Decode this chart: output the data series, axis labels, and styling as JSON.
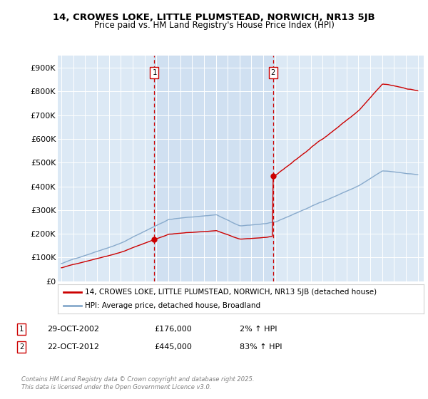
{
  "title1": "14, CROWES LOKE, LITTLE PLUMSTEAD, NORWICH, NR13 5JB",
  "title2": "Price paid vs. HM Land Registry's House Price Index (HPI)",
  "ylabel_ticks": [
    "£0",
    "£100K",
    "£200K",
    "£300K",
    "£400K",
    "£500K",
    "£600K",
    "£700K",
    "£800K",
    "£900K"
  ],
  "ytick_values": [
    0,
    100000,
    200000,
    300000,
    400000,
    500000,
    600000,
    700000,
    800000,
    900000
  ],
  "ylim": [
    0,
    950000
  ],
  "xlim_start": 1994.7,
  "xlim_end": 2025.5,
  "background_color": "#dce9f5",
  "plot_bg": "#dce9f5",
  "line1_color": "#cc0000",
  "line2_color": "#88aacc",
  "sale1_x": 2002.83,
  "sale1_y": 176000,
  "sale2_x": 2012.81,
  "sale2_y": 445000,
  "legend_line1": "14, CROWES LOKE, LITTLE PLUMSTEAD, NORWICH, NR13 5JB (detached house)",
  "legend_line2": "HPI: Average price, detached house, Broadland",
  "annotation1_date": "29-OCT-2002",
  "annotation1_price": "£176,000",
  "annotation1_hpi": "2% ↑ HPI",
  "annotation2_date": "22-OCT-2012",
  "annotation2_price": "£445,000",
  "annotation2_hpi": "83% ↑ HPI",
  "footer": "Contains HM Land Registry data © Crown copyright and database right 2025.\nThis data is licensed under the Open Government Licence v3.0.",
  "grid_color": "#ffffff",
  "vline_color": "#cc0000",
  "shade_color": "#ccddf0"
}
